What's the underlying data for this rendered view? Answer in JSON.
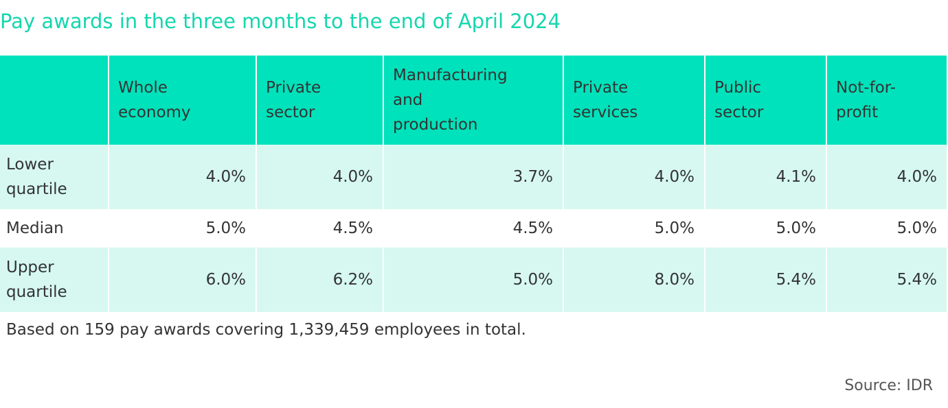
{
  "chart_data": {
    "type": "table",
    "title": "Pay awards in the three months to the end of April 2024",
    "columns": [
      "",
      "Whole economy",
      "Private sector",
      "Manufacturing and production",
      "Private services",
      "Public sector",
      "Not-for-profit"
    ],
    "column_lines": [
      [
        ""
      ],
      [
        "Whole",
        "economy"
      ],
      [
        "Private",
        "sector"
      ],
      [
        "Manufacturing",
        "and",
        "production"
      ],
      [
        "Private",
        "services"
      ],
      [
        "Public",
        "sector"
      ],
      [
        "Not-for-",
        "profit"
      ]
    ],
    "rows": [
      {
        "label": "Lower quartile",
        "label_lines": [
          "Lower",
          "quartile"
        ],
        "values": [
          "4.0%",
          "4.0%",
          "3.7%",
          "4.0%",
          "4.1%",
          "4.0%"
        ]
      },
      {
        "label": "Median",
        "label_lines": [
          "Median"
        ],
        "values": [
          "5.0%",
          "4.5%",
          "4.5%",
          "5.0%",
          "5.0%",
          "5.0%"
        ]
      },
      {
        "label": "Upper quartile",
        "label_lines": [
          "Upper",
          "quartile"
        ],
        "values": [
          "6.0%",
          "6.2%",
          "5.0%",
          "8.0%",
          "5.4%",
          "5.4%"
        ]
      }
    ],
    "note": "Based on 159 pay awards covering 1,339,459 employees in total.",
    "source": "Source: IDR",
    "colors": {
      "title": "#14d6ae",
      "header_fill": "#00e2bb",
      "row_tint": "#d6f8f1",
      "text": "#333333"
    }
  }
}
